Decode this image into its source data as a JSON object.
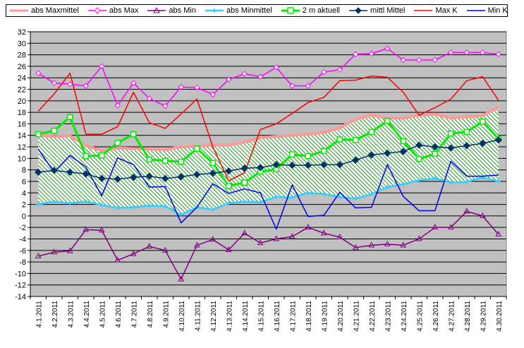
{
  "chart_data": {
    "type": "line",
    "title": "",
    "xlabel": "",
    "ylabel": "",
    "ylim": [
      -14,
      32
    ],
    "yticks": [
      -14,
      -12,
      -10,
      -8,
      -6,
      -4,
      -2,
      0,
      2,
      4,
      6,
      8,
      10,
      12,
      14,
      16,
      18,
      20,
      22,
      24,
      26,
      28,
      30,
      32
    ],
    "grid": true,
    "legend_position": "top",
    "categories": [
      "4.1.2011",
      "4.2.2011",
      "4.3.2011",
      "4.4.2011",
      "4.5.2011",
      "4.6.2011",
      "4.7.2011",
      "4.8.2011",
      "4.9.2011",
      "4.10.2011",
      "4.11.2011",
      "4.12.2011",
      "4.13.2011",
      "4.14.2011",
      "4.15.2011",
      "4.16.2011",
      "4.17.2011",
      "4.18.2011",
      "4.19.2011",
      "4.20.2011",
      "4.21.2011",
      "4.22.2011",
      "4.23.2011",
      "4.24.2011",
      "4.25.2011",
      "4.26.2011",
      "4.27.2011",
      "4.28.2011",
      "4.29.2011",
      "4.30.2011"
    ],
    "series": [
      {
        "name": "abs Maxmittel",
        "color": "#ff9999",
        "values": [
          14.0,
          13.8,
          13.9,
          12.2,
          11.3,
          11.8,
          11.7,
          11.6,
          11.5,
          12.0,
          12.1,
          12.3,
          12.3,
          12.8,
          13.6,
          13.8,
          14.0,
          14.2,
          14.5,
          15.3,
          16.8,
          17.5,
          17.0,
          17.0,
          17.5,
          17.7,
          17.0,
          17.2,
          17.4,
          19.0
        ]
      },
      {
        "name": "abs Max",
        "color": "#ff00ff",
        "values": [
          24.8,
          23.1,
          22.9,
          22.6,
          26.0,
          19.2,
          23.1,
          20.4,
          19.1,
          22.4,
          22.3,
          21.1,
          23.7,
          24.7,
          24.2,
          25.8,
          22.6,
          22.6,
          25.0,
          25.4,
          28.1,
          28.2,
          29.1,
          27.1,
          27.1,
          27.1,
          28.4,
          28.4,
          28.4,
          28.1
        ]
      },
      {
        "name": "abs Min",
        "color": "#800080",
        "values": [
          -7.0,
          -6.3,
          -6.1,
          -2.4,
          -2.5,
          -7.7,
          -6.6,
          -5.3,
          -6.0,
          -11.0,
          -5.1,
          -4.1,
          -5.9,
          -3.0,
          -4.7,
          -4.0,
          -3.6,
          -2.0,
          -3.0,
          -3.7,
          -5.5,
          -5.1,
          -4.9,
          -5.1,
          -4.0,
          -2.0,
          -2.0,
          0.8,
          0.0,
          -3.2
        ]
      },
      {
        "name": "abs Minmittel",
        "color": "#33ccff",
        "values": [
          2.0,
          2.5,
          2.2,
          2.5,
          1.9,
          1.4,
          1.5,
          1.8,
          1.7,
          0.2,
          1.5,
          1.1,
          2.2,
          2.5,
          2.4,
          3.3,
          3.2,
          4.0,
          3.8,
          3.3,
          3.0,
          3.8,
          5.0,
          5.5,
          6.2,
          6.5,
          5.8,
          5.9,
          6.7,
          6.0
        ]
      },
      {
        "name": "2 m aktuell",
        "color": "#00ee00",
        "values": [
          14.2,
          14.8,
          17.2,
          10.4,
          10.5,
          12.7,
          14.2,
          9.8,
          9.6,
          9.4,
          11.7,
          9.2,
          5.2,
          5.8,
          7.7,
          8.1,
          10.7,
          10.4,
          11.3,
          13.3,
          13.2,
          14.6,
          16.5,
          13.0,
          9.9,
          10.8,
          14.3,
          14.6,
          16.4,
          13.4
        ]
      },
      {
        "name": "mittl Mittel",
        "color": "#003366",
        "values": [
          7.6,
          7.9,
          7.6,
          7.3,
          6.5,
          6.4,
          6.7,
          6.9,
          6.5,
          6.8,
          7.2,
          7.4,
          7.8,
          8.3,
          8.4,
          8.9,
          8.8,
          8.8,
          8.9,
          8.9,
          9.7,
          10.6,
          10.9,
          11.2,
          12.3,
          12.0,
          11.8,
          12.2,
          12.6,
          13.2
        ]
      },
      {
        "name": "Max K",
        "color": "#ff0000",
        "values": [
          18.2,
          21.2,
          24.8,
          14.2,
          14.2,
          15.5,
          21.5,
          16.2,
          15.2,
          17.7,
          20.3,
          12.0,
          6.1,
          7.5,
          15.0,
          16.0,
          17.8,
          19.7,
          20.6,
          23.5,
          23.6,
          24.3,
          24.1,
          21.5,
          17.5,
          18.8,
          20.3,
          23.5,
          24.2,
          20.1
        ]
      },
      {
        "name": "Min K",
        "color": "#0000ee",
        "values": [
          11.6,
          7.6,
          10.5,
          8.5,
          3.5,
          10.1,
          8.9,
          5.0,
          5.1,
          -1.2,
          1.5,
          5.6,
          3.9,
          4.7,
          4.0,
          -2.3,
          5.4,
          -0.1,
          0.1,
          4.1,
          1.4,
          1.5,
          8.9,
          3.4,
          0.9,
          0.9,
          9.5,
          6.9,
          6.9,
          7.1
        ]
      }
    ]
  },
  "colors": {
    "plot_bg": "#c0c0c0",
    "hatch": "#339933",
    "grid": "#000000"
  }
}
